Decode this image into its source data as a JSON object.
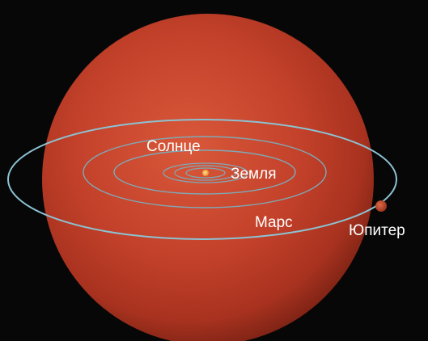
{
  "labels": {
    "sun": "Солнце",
    "earth": "Земля",
    "mars": "Марс",
    "jupiter": "Юпитер"
  },
  "colors": {
    "background": "#070707",
    "giant_star": "#c8442d",
    "orbit": "#7fb3c4",
    "sun": "#f3a23a",
    "jupiter": "#b64a2d",
    "label": "#ffffff"
  }
}
